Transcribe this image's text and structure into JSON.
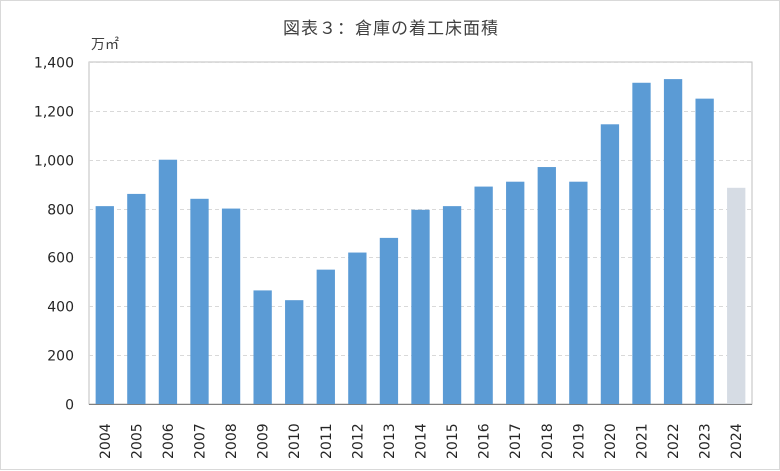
{
  "chart_data": {
    "type": "bar",
    "title": "図表３：倉庫の着工床面積",
    "ylabel": "万㎡",
    "xlabel": "",
    "ylim": [
      0,
      1400
    ],
    "yticks": [
      "0",
      "200",
      "400",
      "600",
      "800",
      "1,000",
      "1,200",
      "1,400"
    ],
    "ytick_values": [
      0,
      200,
      400,
      600,
      800,
      1000,
      1200,
      1400
    ],
    "categories": [
      "2004",
      "2005",
      "2006",
      "2007",
      "2008",
      "2009",
      "2010",
      "2011",
      "2012",
      "2013",
      "2014",
      "2015",
      "2016",
      "2017",
      "2018",
      "2019",
      "2020",
      "2021",
      "2022",
      "2023",
      "2024"
    ],
    "values": [
      810,
      860,
      1000,
      840,
      800,
      465,
      425,
      550,
      620,
      680,
      795,
      810,
      890,
      910,
      970,
      910,
      1145,
      1315,
      1330,
      1250,
      885
    ],
    "grid": true,
    "legend": "none",
    "colors": {
      "bar": "#5b9bd5",
      "bar_last": "#d6dce4",
      "grid": "#d9d9d9",
      "axis": "#7f7f7f"
    }
  }
}
